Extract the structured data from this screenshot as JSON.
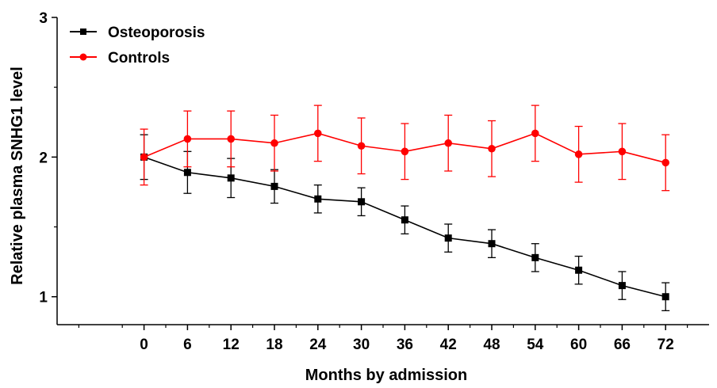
{
  "chart_data": {
    "type": "line",
    "xlabel": "Months by admission",
    "ylabel": "Relative plasma SNHG1 level",
    "x": [
      0,
      6,
      12,
      18,
      24,
      30,
      36,
      42,
      48,
      54,
      60,
      66,
      72
    ],
    "x_tick_labels": [
      "0",
      "6",
      "12",
      "18",
      "24",
      "30",
      "36",
      "42",
      "48",
      "54",
      "60",
      "66",
      "72"
    ],
    "y_ticks": [
      1,
      2,
      3
    ],
    "y_tick_labels": [
      "1",
      "2",
      "3"
    ],
    "ylim": [
      0.8,
      3.0
    ],
    "xlim": [
      -12,
      78
    ],
    "legend_position": "top-left",
    "series": [
      {
        "name": "Osteoporosis",
        "color": "#000000",
        "marker": "square",
        "values": [
          2.0,
          1.89,
          1.85,
          1.79,
          1.7,
          1.68,
          1.55,
          1.42,
          1.38,
          1.28,
          1.19,
          1.08,
          1.0
        ],
        "errors": [
          0.16,
          0.15,
          0.14,
          0.12,
          0.1,
          0.1,
          0.1,
          0.1,
          0.1,
          0.1,
          0.1,
          0.1,
          0.1
        ]
      },
      {
        "name": "Controls",
        "color": "#ff0000",
        "marker": "circle",
        "values": [
          2.0,
          2.13,
          2.13,
          2.1,
          2.17,
          2.08,
          2.04,
          2.1,
          2.06,
          2.17,
          2.02,
          2.04,
          1.96
        ],
        "errors": [
          0.2,
          0.2,
          0.2,
          0.2,
          0.2,
          0.2,
          0.2,
          0.2,
          0.2,
          0.2,
          0.2,
          0.2,
          0.2
        ]
      }
    ]
  }
}
